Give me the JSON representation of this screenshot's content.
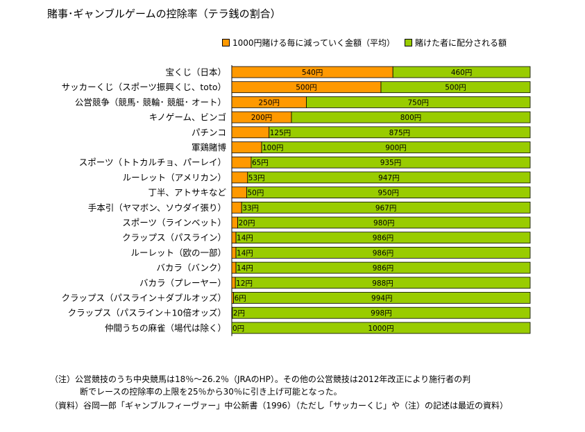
{
  "title": "賭事･ギャンブルゲームの控除率（テラ銭の割合）",
  "legend": [
    {
      "label": "1000円賭ける毎に減っていく金額（平均）",
      "color": "#ff9900"
    },
    {
      "label": "賭けた者に配分される額",
      "color": "#99cc00"
    }
  ],
  "chart_data": {
    "type": "bar",
    "orientation": "horizontal",
    "stacked": true,
    "total": 1000,
    "unit": "円",
    "categories": [
      "宝くじ（日本）",
      "サッカーくじ（スポーツ振興くじ、toto）",
      "公営競争（競馬･ 競輪･ 競艇･ オート）",
      "キノゲーム、ビンゴ",
      "パチンコ",
      "軍鶏賭博",
      "スポーツ（トトカルチョ、パーレイ）",
      "ルーレット（アメリカン）",
      "丁半、アトサキなど",
      "手本引（ヤマボン、ソウダイ張り）",
      "スポーツ（ラインベット）",
      "クラップス（パスライン）",
      "ルーレット（欧の一部）",
      "バカラ（バンク）",
      "バカラ（プレーヤー）",
      "クラップス（パスライン＋ダブルオッズ）",
      "クラップス（パスライン＋10倍オッズ）",
      "仲間うちの麻雀（場代は除く）"
    ],
    "series": [
      {
        "name": "1000円賭ける毎に減っていく金額（平均）",
        "color": "#ff9900",
        "values": [
          540,
          500,
          250,
          200,
          125,
          100,
          65,
          53,
          50,
          33,
          20,
          14,
          14,
          14,
          12,
          6,
          2,
          0
        ],
        "labels": [
          "540円",
          "500円",
          "250円",
          "200円",
          "125円",
          "100円",
          "65円",
          "53円",
          "50円",
          "33円",
          "20円",
          "14円",
          "14円",
          "14円",
          "12円",
          "6円",
          "2円",
          "0円"
        ]
      },
      {
        "name": "賭けた者に配分される額",
        "color": "#99cc00",
        "values": [
          460,
          500,
          750,
          800,
          875,
          900,
          935,
          947,
          950,
          967,
          980,
          986,
          986,
          986,
          988,
          994,
          998,
          1000
        ],
        "labels": [
          "460円",
          "500円",
          "750円",
          "800円",
          "875円",
          "900円",
          "935円",
          "947円",
          "950円",
          "967円",
          "980円",
          "986円",
          "986円",
          "986円",
          "988円",
          "994円",
          "998円",
          "1000円"
        ]
      }
    ],
    "xlim": [
      0,
      1000
    ],
    "grid": false,
    "legend_position": "top-right"
  },
  "notes": {
    "n1": "（注）公営競技のうち中央競馬は18％～26.2％（JRAのHP）。その他の公営競技は2012年改正により施行者の判",
    "n2": "断でレースの控除率の上限を25％から30％に引き上げ可能となった。",
    "n3": "（資料）谷岡一郎「ギャンブルフィーヴァー」中公新書（1996）（ただし「サッカーくじ」や（注）の記述は最近の資料）"
  }
}
